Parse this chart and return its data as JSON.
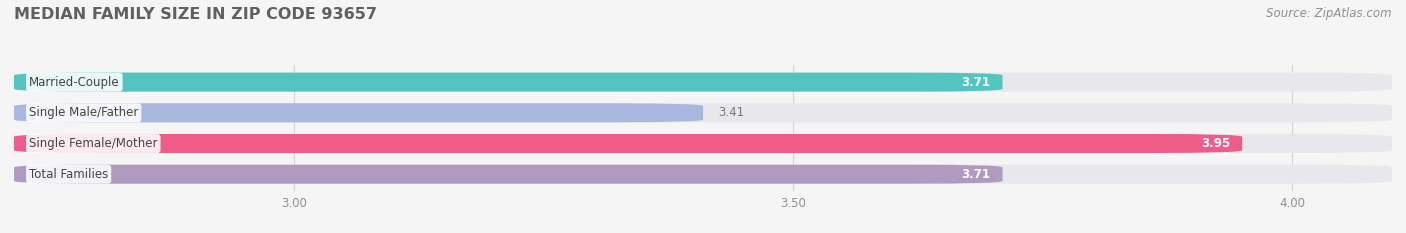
{
  "title": "MEDIAN FAMILY SIZE IN ZIP CODE 93657",
  "source": "Source: ZipAtlas.com",
  "categories": [
    "Married-Couple",
    "Single Male/Father",
    "Single Female/Mother",
    "Total Families"
  ],
  "values": [
    3.71,
    3.41,
    3.95,
    3.71
  ],
  "bar_colors": [
    "#52C5C0",
    "#A8B8E0",
    "#EE5C8A",
    "#B09ABF"
  ],
  "bar_bg_color": "#E8E8EC",
  "xlim_left": 2.72,
  "xlim_right": 4.1,
  "xstart": 2.72,
  "xticks": [
    3.0,
    3.5,
    4.0
  ],
  "bar_height": 0.62,
  "bar_gap": 0.38,
  "label_fontsize": 8.5,
  "value_fontsize": 8.5,
  "title_fontsize": 11.5,
  "source_fontsize": 8.5,
  "background_color": "#F5F5F5",
  "title_color": "#606060",
  "source_color": "#909090",
  "grid_color": "#D5D5D5",
  "tick_color": "#909090"
}
